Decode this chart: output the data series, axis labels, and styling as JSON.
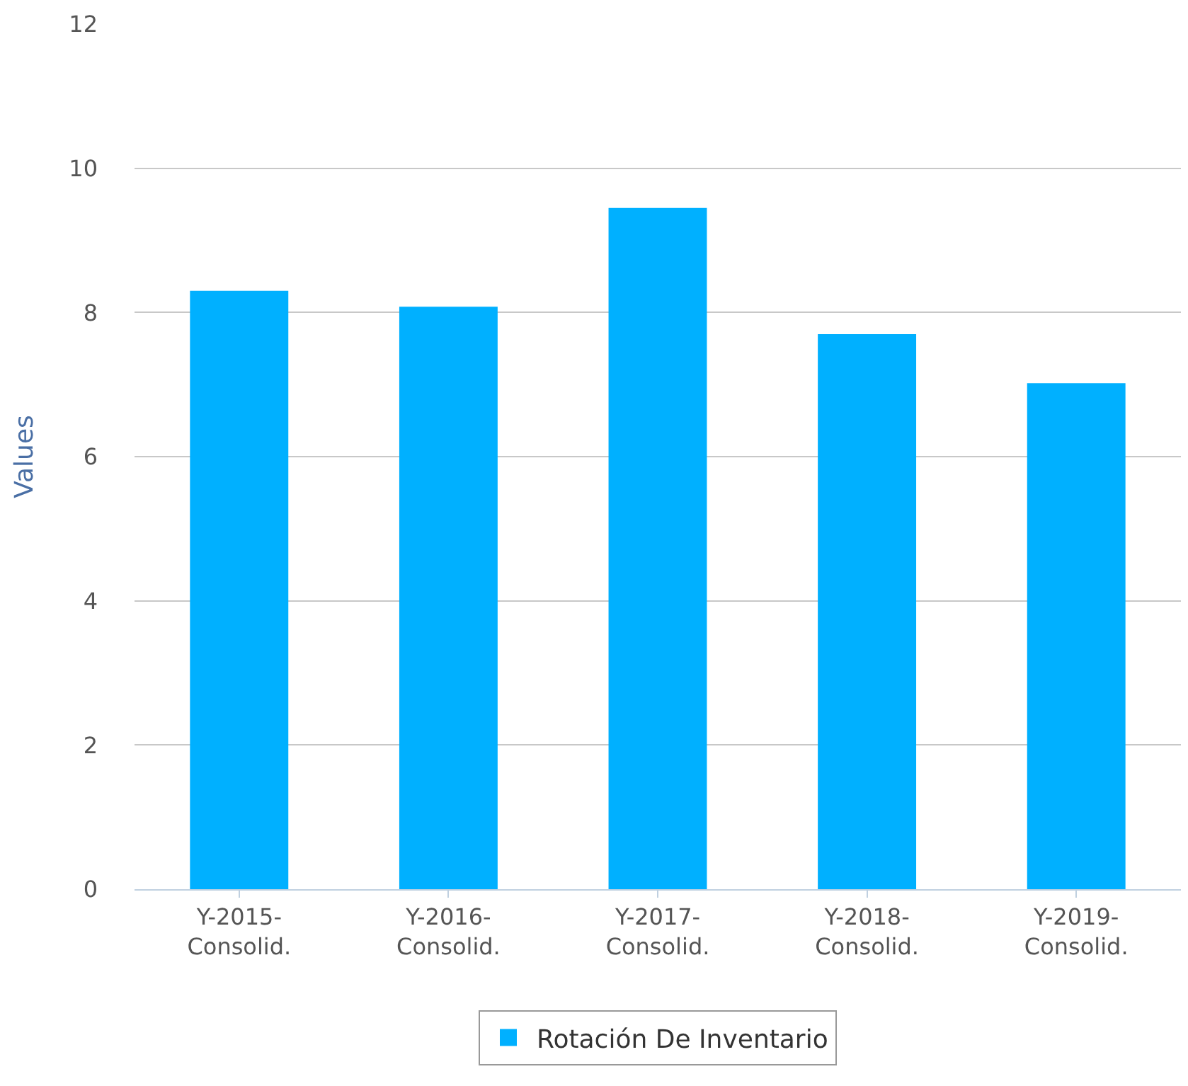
{
  "chart_data": {
    "type": "bar",
    "ylabel": "Values",
    "categories": [
      "Y-2015-\nConsolid.",
      "Y-2016-\nConsolid.",
      "Y-2017-\nConsolid.",
      "Y-2018-\nConsolid.",
      "Y-2019-\nConsolid."
    ],
    "series": [
      {
        "name": "Rotación De Inventario",
        "color": "#00b0ff",
        "values": [
          8.3,
          8.08,
          9.45,
          7.7,
          7.02
        ]
      }
    ],
    "ylim": [
      0,
      12
    ],
    "yticks": [
      0,
      2,
      4,
      6,
      8,
      10,
      12
    ],
    "grid": "y",
    "legend": "bottom"
  }
}
